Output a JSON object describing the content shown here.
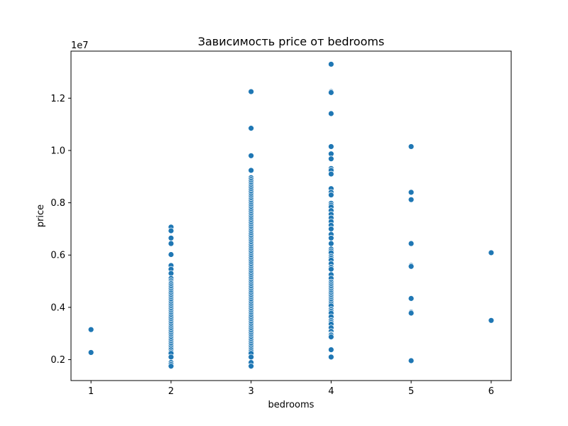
{
  "chart_data": {
    "type": "scatter",
    "title": "Зависимость price от bedrooms",
    "xlabel": "bedrooms",
    "ylabel": "price",
    "y_offset_label": "1e7",
    "xlim": [
      0.75,
      6.25
    ],
    "ylim": [
      1200000,
      13800000
    ],
    "xticks": [
      1,
      2,
      3,
      4,
      5,
      6
    ],
    "yticks": [
      2000000,
      4000000,
      6000000,
      8000000,
      10000000,
      12000000
    ],
    "ytick_labels": [
      "0.2",
      "0.4",
      "0.6",
      "0.8",
      "1.0",
      "1.2"
    ],
    "grid": false,
    "color": "#1f77b4",
    "series": [
      {
        "points": [
          [
            1,
            3150000
          ],
          [
            1,
            2275000
          ],
          [
            2,
            7070000
          ],
          [
            2,
            6930000
          ],
          [
            2,
            6650000
          ],
          [
            2,
            6440000
          ],
          [
            2,
            6020000
          ],
          [
            2,
            5600000
          ],
          [
            2,
            5460000
          ],
          [
            2,
            5300000
          ],
          [
            2,
            5110000
          ],
          [
            2,
            5020000
          ],
          [
            2,
            4950000
          ],
          [
            2,
            4900000
          ],
          [
            2,
            4830000
          ],
          [
            2,
            4760000
          ],
          [
            2,
            4690000
          ],
          [
            2,
            4620000
          ],
          [
            2,
            4550000
          ],
          [
            2,
            4480000
          ],
          [
            2,
            4410000
          ],
          [
            2,
            4340000
          ],
          [
            2,
            4270000
          ],
          [
            2,
            4200000
          ],
          [
            2,
            4130000
          ],
          [
            2,
            4060000
          ],
          [
            2,
            3990000
          ],
          [
            2,
            3920000
          ],
          [
            2,
            3850000
          ],
          [
            2,
            3780000
          ],
          [
            2,
            3710000
          ],
          [
            2,
            3640000
          ],
          [
            2,
            3570000
          ],
          [
            2,
            3500000
          ],
          [
            2,
            3430000
          ],
          [
            2,
            3360000
          ],
          [
            2,
            3290000
          ],
          [
            2,
            3220000
          ],
          [
            2,
            3150000
          ],
          [
            2,
            3080000
          ],
          [
            2,
            3010000
          ],
          [
            2,
            2940000
          ],
          [
            2,
            2870000
          ],
          [
            2,
            2800000
          ],
          [
            2,
            2730000
          ],
          [
            2,
            2660000
          ],
          [
            2,
            2590000
          ],
          [
            2,
            2520000
          ],
          [
            2,
            2450000
          ],
          [
            2,
            2380000
          ],
          [
            2,
            2300000
          ],
          [
            2,
            2240000
          ],
          [
            2,
            2100000
          ],
          [
            2,
            1890000
          ],
          [
            2,
            1820000
          ],
          [
            2,
            1750000
          ],
          [
            3,
            12250000
          ],
          [
            3,
            10850000
          ],
          [
            3,
            9800000
          ],
          [
            3,
            9240000
          ],
          [
            3,
            8960000
          ],
          [
            3,
            8890000
          ],
          [
            3,
            8820000
          ],
          [
            3,
            8750000
          ],
          [
            3,
            8680000
          ],
          [
            3,
            8610000
          ],
          [
            3,
            8540000
          ],
          [
            3,
            8470000
          ],
          [
            3,
            8400000
          ],
          [
            3,
            8330000
          ],
          [
            3,
            8260000
          ],
          [
            3,
            8190000
          ],
          [
            3,
            8120000
          ],
          [
            3,
            8050000
          ],
          [
            3,
            7980000
          ],
          [
            3,
            7910000
          ],
          [
            3,
            7840000
          ],
          [
            3,
            7770000
          ],
          [
            3,
            7700000
          ],
          [
            3,
            7630000
          ],
          [
            3,
            7560000
          ],
          [
            3,
            7490000
          ],
          [
            3,
            7420000
          ],
          [
            3,
            7350000
          ],
          [
            3,
            7280000
          ],
          [
            3,
            7210000
          ],
          [
            3,
            7140000
          ],
          [
            3,
            7070000
          ],
          [
            3,
            7000000
          ],
          [
            3,
            6930000
          ],
          [
            3,
            6860000
          ],
          [
            3,
            6790000
          ],
          [
            3,
            6720000
          ],
          [
            3,
            6650000
          ],
          [
            3,
            6580000
          ],
          [
            3,
            6510000
          ],
          [
            3,
            6440000
          ],
          [
            3,
            6370000
          ],
          [
            3,
            6300000
          ],
          [
            3,
            6230000
          ],
          [
            3,
            6160000
          ],
          [
            3,
            6090000
          ],
          [
            3,
            6020000
          ],
          [
            3,
            5950000
          ],
          [
            3,
            5880000
          ],
          [
            3,
            5810000
          ],
          [
            3,
            5740000
          ],
          [
            3,
            5670000
          ],
          [
            3,
            5600000
          ],
          [
            3,
            5530000
          ],
          [
            3,
            5460000
          ],
          [
            3,
            5390000
          ],
          [
            3,
            5320000
          ],
          [
            3,
            5250000
          ],
          [
            3,
            5180000
          ],
          [
            3,
            5110000
          ],
          [
            3,
            5040000
          ],
          [
            3,
            4970000
          ],
          [
            3,
            4900000
          ],
          [
            3,
            4830000
          ],
          [
            3,
            4760000
          ],
          [
            3,
            4690000
          ],
          [
            3,
            4620000
          ],
          [
            3,
            4550000
          ],
          [
            3,
            4480000
          ],
          [
            3,
            4410000
          ],
          [
            3,
            4340000
          ],
          [
            3,
            4270000
          ],
          [
            3,
            4200000
          ],
          [
            3,
            4130000
          ],
          [
            3,
            4060000
          ],
          [
            3,
            3990000
          ],
          [
            3,
            3920000
          ],
          [
            3,
            3850000
          ],
          [
            3,
            3780000
          ],
          [
            3,
            3710000
          ],
          [
            3,
            3640000
          ],
          [
            3,
            3570000
          ],
          [
            3,
            3500000
          ],
          [
            3,
            3430000
          ],
          [
            3,
            3360000
          ],
          [
            3,
            3290000
          ],
          [
            3,
            3220000
          ],
          [
            3,
            3150000
          ],
          [
            3,
            3080000
          ],
          [
            3,
            3010000
          ],
          [
            3,
            2940000
          ],
          [
            3,
            2870000
          ],
          [
            3,
            2800000
          ],
          [
            3,
            2730000
          ],
          [
            3,
            2660000
          ],
          [
            3,
            2590000
          ],
          [
            3,
            2520000
          ],
          [
            3,
            2450000
          ],
          [
            3,
            2380000
          ],
          [
            3,
            2310000
          ],
          [
            3,
            2240000
          ],
          [
            3,
            2100000
          ],
          [
            3,
            1890000
          ],
          [
            3,
            1750000
          ],
          [
            4,
            13300000
          ],
          [
            4,
            12250000
          ],
          [
            4,
            12215000
          ],
          [
            4,
            11410000
          ],
          [
            4,
            10150000
          ],
          [
            4,
            9870000
          ],
          [
            4,
            9681000
          ],
          [
            4,
            9310000
          ],
          [
            4,
            9240000
          ],
          [
            4,
            9100000
          ],
          [
            4,
            8540000
          ],
          [
            4,
            8400000
          ],
          [
            4,
            8300000
          ],
          [
            4,
            7980000
          ],
          [
            4,
            7910000
          ],
          [
            4,
            7840000
          ],
          [
            4,
            7700000
          ],
          [
            4,
            7560000
          ],
          [
            4,
            7420000
          ],
          [
            4,
            7280000
          ],
          [
            4,
            7140000
          ],
          [
            4,
            7000000
          ],
          [
            4,
            6790000
          ],
          [
            4,
            6650000
          ],
          [
            4,
            6440000
          ],
          [
            4,
            6230000
          ],
          [
            4,
            6160000
          ],
          [
            4,
            6090000
          ],
          [
            4,
            5950000
          ],
          [
            4,
            5880000
          ],
          [
            4,
            5810000
          ],
          [
            4,
            5670000
          ],
          [
            4,
            5530000
          ],
          [
            4,
            5460000
          ],
          [
            4,
            5250000
          ],
          [
            4,
            5110000
          ],
          [
            4,
            4970000
          ],
          [
            4,
            4900000
          ],
          [
            4,
            4830000
          ],
          [
            4,
            4760000
          ],
          [
            4,
            4690000
          ],
          [
            4,
            4620000
          ],
          [
            4,
            4550000
          ],
          [
            4,
            4480000
          ],
          [
            4,
            4410000
          ],
          [
            4,
            4340000
          ],
          [
            4,
            4270000
          ],
          [
            4,
            4200000
          ],
          [
            4,
            4130000
          ],
          [
            4,
            4060000
          ],
          [
            4,
            3920000
          ],
          [
            4,
            3850000
          ],
          [
            4,
            3780000
          ],
          [
            4,
            3640000
          ],
          [
            4,
            3500000
          ],
          [
            4,
            3430000
          ],
          [
            4,
            3360000
          ],
          [
            4,
            3220000
          ],
          [
            4,
            3080000
          ],
          [
            4,
            2975000
          ],
          [
            4,
            2940000
          ],
          [
            4,
            2870000
          ],
          [
            4,
            2380000
          ],
          [
            4,
            2100000
          ],
          [
            5,
            10150000
          ],
          [
            5,
            8400000
          ],
          [
            5,
            8120000
          ],
          [
            5,
            6440000
          ],
          [
            5,
            5600000
          ],
          [
            5,
            5565000
          ],
          [
            5,
            4340000
          ],
          [
            5,
            3815000
          ],
          [
            5,
            3780000
          ],
          [
            5,
            1960000
          ],
          [
            6,
            6090000
          ],
          [
            6,
            3500000
          ]
        ]
      }
    ]
  }
}
